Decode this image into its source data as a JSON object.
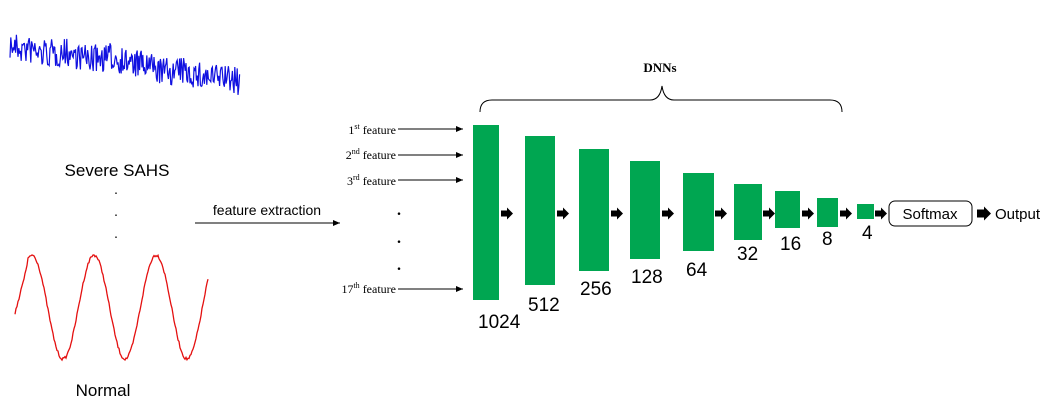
{
  "signals": {
    "top_label": "Severe SAHS",
    "top_color": "#1010e0",
    "bottom_label": "Normal",
    "bottom_color": "#e41010",
    "ellipsis": "."
  },
  "extraction": {
    "label": "feature extraction"
  },
  "features": {
    "f1_num": "1",
    "f1_sup": "st",
    "f2_num": "2",
    "f2_sup": "nd",
    "f3_num": "3",
    "f3_sup": "rd",
    "f17_num": "17",
    "f17_sup": "th",
    "word": "feature",
    "ellipsis": "."
  },
  "dnn": {
    "title": "DNNs",
    "layer_color": "#00a651",
    "layers": [
      {
        "units": "1024"
      },
      {
        "units": "512"
      },
      {
        "units": "256"
      },
      {
        "units": "128"
      },
      {
        "units": "64"
      },
      {
        "units": "32"
      },
      {
        "units": "16"
      },
      {
        "units": "8"
      },
      {
        "units": "4"
      }
    ],
    "softmax": "Softmax",
    "output": "Output"
  }
}
